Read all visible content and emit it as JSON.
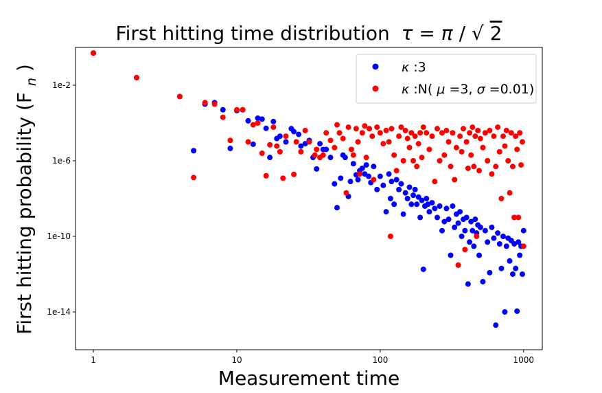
{
  "chart_data": {
    "type": "scatter",
    "title": "First hitting time distribution",
    "title_math": {
      "symbol": "τ",
      "equals": " = ",
      "numerator": "π",
      "slash": "/",
      "radical": "√",
      "radicand": "2"
    },
    "xlabel": "Measurement time",
    "ylabel": "First hitting probability (F",
    "ylabel_sub": "n",
    "ylabel_close": ")",
    "x_scale": "log",
    "y_scale": "log",
    "xlim": [
      0.75,
      1350
    ],
    "ylim": [
      1e-16,
      1.0
    ],
    "xticks": [
      {
        "value": 1,
        "label": "1"
      },
      {
        "value": 10,
        "label": "10"
      },
      {
        "value": 100,
        "label": "100"
      },
      {
        "value": 1000,
        "label": "1000"
      }
    ],
    "yticks": [
      {
        "value": 0.01,
        "label": "1e-2"
      },
      {
        "value": 1e-06,
        "label": "1e-6"
      },
      {
        "value": 1e-10,
        "label": "1e-10"
      },
      {
        "value": 1e-14,
        "label": "1e-14"
      }
    ],
    "grid": false,
    "legend_position": "top-right",
    "series": [
      {
        "name_symbol": "κ",
        "name_rest": ":3",
        "color": "#0000ff",
        "points": [
          [
            1,
            0.5
          ],
          [
            2,
            0.025
          ],
          [
            4,
            0.0025
          ],
          [
            5,
            3.4e-06
          ],
          [
            6,
            0.001
          ],
          [
            7,
            0.0012
          ],
          [
            8,
            0.0005
          ],
          [
            9,
            4.5e-06
          ],
          [
            10,
            0.00045
          ],
          [
            11,
            0.0005
          ],
          [
            12,
            0.00013
          ],
          [
            13,
            7.5e-06
          ],
          [
            14,
            0.00018
          ],
          [
            15,
            0.00016
          ],
          [
            16,
            5.2e-05
          ],
          [
            17,
            1.5e-06
          ],
          [
            18,
            0.00012
          ],
          [
            19,
            1.5e-05
          ],
          [
            20,
            2e-05
          ],
          [
            22,
            1e-05
          ],
          [
            24,
            5e-05
          ],
          [
            25,
            3.5e-05
          ],
          [
            27,
            2.5e-05
          ],
          [
            28,
            6e-06
          ],
          [
            30,
            8e-06
          ],
          [
            32,
            1.2e-05
          ],
          [
            34,
            1.5e-06
          ],
          [
            36,
            3.7e-07
          ],
          [
            38,
            8e-06
          ],
          [
            40,
            4e-06
          ],
          [
            42,
            4e-06
          ],
          [
            45,
            1.5e-06
          ],
          [
            48,
            6e-08
          ],
          [
            50,
            3.3e-09
          ],
          [
            53,
            1.2e-07
          ],
          [
            55,
            2e-06
          ],
          [
            57,
            1.5e-06
          ],
          [
            60,
            1.3e-08
          ],
          [
            62,
            8e-08
          ],
          [
            65,
            7e-07
          ],
          [
            68,
            1.8e-07
          ],
          [
            70,
            1e-07
          ],
          [
            72,
            3e-07
          ],
          [
            75,
            4e-07
          ],
          [
            78,
            2e-07
          ],
          [
            80,
            6e-07
          ],
          [
            83,
            1.5e-07
          ],
          [
            86,
            7e-08
          ],
          [
            90,
            5e-07
          ],
          [
            95,
            3e-08
          ],
          [
            100,
            1.5e-07
          ],
          [
            105,
            5e-08
          ],
          [
            110,
            2e-09
          ],
          [
            115,
            2e-07
          ],
          [
            118,
            1e-08
          ],
          [
            120,
            8e-08
          ],
          [
            125,
            5e-09
          ],
          [
            130,
            1e-07
          ],
          [
            135,
            3e-08
          ],
          [
            140,
            6e-08
          ],
          [
            145,
            1.5e-09
          ],
          [
            150,
            2e-08
          ],
          [
            155,
            1e-08
          ],
          [
            160,
            4e-08
          ],
          [
            165,
            5e-09
          ],
          [
            170,
            1.5e-08
          ],
          [
            175,
            3e-08
          ],
          [
            180,
            5e-09
          ],
          [
            185,
            1.2e-08
          ],
          [
            190,
            1e-09
          ],
          [
            195,
            8e-09
          ],
          [
            200,
            1.8e-12
          ],
          [
            205,
            4e-09
          ],
          [
            210,
            1e-08
          ],
          [
            215,
            5e-09
          ],
          [
            220,
            2e-09
          ],
          [
            230,
            6e-09
          ],
          [
            240,
            3e-09
          ],
          [
            250,
            1e-09
          ],
          [
            260,
            4e-09
          ],
          [
            270,
            2e-10
          ],
          [
            280,
            6e-10
          ],
          [
            290,
            3e-09
          ],
          [
            300,
            8e-10
          ],
          [
            310,
            1e-11
          ],
          [
            320,
            4e-09
          ],
          [
            330,
            3e-10
          ],
          [
            340,
            1.5e-09
          ],
          [
            350,
            5e-10
          ],
          [
            360,
            2e-09
          ],
          [
            370,
            1e-10
          ],
          [
            380,
            8e-10
          ],
          [
            390,
            2e-10
          ],
          [
            400,
            1e-09
          ],
          [
            410,
            3e-13
          ],
          [
            420,
            5e-11
          ],
          [
            430,
            6e-10
          ],
          [
            440,
            2e-10
          ],
          [
            450,
            3e-11
          ],
          [
            460,
            8e-10
          ],
          [
            470,
            1.5e-10
          ],
          [
            480,
            4e-10
          ],
          [
            490,
            1e-11
          ],
          [
            500,
            3e-10
          ],
          [
            520,
            4e-13
          ],
          [
            540,
            2e-10
          ],
          [
            560,
            5e-11
          ],
          [
            580,
            1.2e-12
          ],
          [
            600,
            3e-10
          ],
          [
            620,
            8e-11
          ],
          [
            640,
            2e-15
          ],
          [
            660,
            1.5e-10
          ],
          [
            680,
            4e-11
          ],
          [
            700,
            2e-12
          ],
          [
            720,
            1e-10
          ],
          [
            740,
            1e-14
          ],
          [
            760,
            3e-11
          ],
          [
            780,
            8e-11
          ],
          [
            800,
            5e-12
          ],
          [
            820,
            6e-11
          ],
          [
            840,
            1e-12
          ],
          [
            860,
            4e-11
          ],
          [
            880,
            2e-12
          ],
          [
            900,
            1.1e-14
          ],
          [
            920,
            5e-11
          ],
          [
            940,
            1e-11
          ],
          [
            960,
            3e-11
          ],
          [
            980,
            1e-12
          ],
          [
            1000,
            2e-10
          ]
        ]
      },
      {
        "name_symbol": "κ",
        "name_rest": ":N(",
        "name_mu": "μ",
        "name_mid": "=3, ",
        "name_sigma": "σ",
        "name_end": "=0.01)",
        "color": "#ff0000",
        "points": [
          [
            1,
            0.5
          ],
          [
            2,
            0.025
          ],
          [
            4,
            0.0025
          ],
          [
            5,
            1.3e-07
          ],
          [
            6,
            0.0012
          ],
          [
            7,
            0.001
          ],
          [
            8,
            0.0002
          ],
          [
            9,
            1.2e-05
          ],
          [
            10,
            0.0005
          ],
          [
            11,
            0.0005
          ],
          [
            12,
            1e-05
          ],
          [
            13,
            8e-05
          ],
          [
            14,
            0.0001
          ],
          [
            15,
            2.5e-06
          ],
          [
            16,
            1.6e-07
          ],
          [
            17,
            7e-06
          ],
          [
            18,
            6e-05
          ],
          [
            19,
            6e-06
          ],
          [
            20,
            3e-06
          ],
          [
            21,
            1.2e-07
          ],
          [
            22,
            2e-05
          ],
          [
            25,
            1.9e-07
          ],
          [
            26,
            1e-05
          ],
          [
            28,
            3e-06
          ],
          [
            30,
            4e-05
          ],
          [
            32,
            1e-05
          ],
          [
            35,
            2e-06
          ],
          [
            36,
            4e-06
          ],
          [
            38,
            1.5e-06
          ],
          [
            40,
            2e-06
          ],
          [
            42,
            3e-05
          ],
          [
            45,
            1.2e-05
          ],
          [
            48,
            5e-06
          ],
          [
            50,
            8e-05
          ],
          [
            52,
            3e-05
          ],
          [
            55,
            1.5e-05
          ],
          [
            58,
            2e-08
          ],
          [
            60,
            6e-05
          ],
          [
            63,
            4e-06
          ],
          [
            65,
            2e-06
          ],
          [
            68,
            5e-05
          ],
          [
            70,
            1e-05
          ],
          [
            72,
            2e-07
          ],
          [
            75,
            3e-05
          ],
          [
            78,
            7e-05
          ],
          [
            80,
            1.5e-06
          ],
          [
            84,
            5e-05
          ],
          [
            88,
            2e-05
          ],
          [
            90,
            1e-07
          ],
          [
            95,
            6e-05
          ],
          [
            100,
            3e-05
          ],
          [
            105,
            8e-06
          ],
          [
            110,
            4e-05
          ],
          [
            115,
            1e-05
          ],
          [
            118,
            1e-10
          ],
          [
            120,
            5e-05
          ],
          [
            125,
            2e-06
          ],
          [
            130,
            3e-07
          ],
          [
            135,
            2e-05
          ],
          [
            140,
            6e-05
          ],
          [
            145,
            1e-06
          ],
          [
            150,
            4e-05
          ],
          [
            155,
            1.5e-05
          ],
          [
            160,
            5e-06
          ],
          [
            165,
            3e-05
          ],
          [
            170,
            1e-06
          ],
          [
            175,
            2e-05
          ],
          [
            180,
            5e-07
          ],
          [
            185,
            8e-06
          ],
          [
            190,
            3e-05
          ],
          [
            195,
            1.5e-06
          ],
          [
            200,
            6e-05
          ],
          [
            210,
            3e-05
          ],
          [
            220,
            4e-06
          ],
          [
            230,
            2e-05
          ],
          [
            240,
            8e-08
          ],
          [
            250,
            5e-05
          ],
          [
            260,
            1e-06
          ],
          [
            270,
            3e-05
          ],
          [
            280,
            2e-06
          ],
          [
            290,
            4e-05
          ],
          [
            300,
            1e-05
          ],
          [
            310,
            5e-07
          ],
          [
            320,
            3e-05
          ],
          [
            330,
            1e-07
          ],
          [
            340,
            5e-06
          ],
          [
            350,
            3e-12
          ],
          [
            360,
            2e-05
          ],
          [
            370,
            3e-06
          ],
          [
            380,
            5e-05
          ],
          [
            390,
            2e-11
          ],
          [
            400,
            1e-05
          ],
          [
            410,
            4e-07
          ],
          [
            420,
            3e-05
          ],
          [
            430,
            2e-06
          ],
          [
            440,
            6e-05
          ],
          [
            450,
            5e-07
          ],
          [
            460,
            2e-05
          ],
          [
            470,
            1e-10
          ],
          [
            480,
            4e-05
          ],
          [
            490,
            3e-07
          ],
          [
            500,
            1.5e-05
          ],
          [
            520,
            5e-06
          ],
          [
            540,
            3e-05
          ],
          [
            560,
            1e-06
          ],
          [
            580,
            4e-05
          ],
          [
            600,
            2e-07
          ],
          [
            620,
            2e-05
          ],
          [
            640,
            5e-07
          ],
          [
            660,
            6e-05
          ],
          [
            680,
            3e-06
          ],
          [
            700,
            1e-08
          ],
          [
            720,
            2e-05
          ],
          [
            740,
            6e-06
          ],
          [
            760,
            4e-05
          ],
          [
            780,
            1e-06
          ],
          [
            800,
            2e-08
          ],
          [
            820,
            3e-05
          ],
          [
            840,
            5e-07
          ],
          [
            860,
            1e-09
          ],
          [
            880,
            2e-05
          ],
          [
            900,
            4e-06
          ],
          [
            920,
            1e-09
          ],
          [
            940,
            3e-05
          ],
          [
            960,
            6e-07
          ],
          [
            980,
            1e-05
          ],
          [
            1000,
            3e-11
          ]
        ]
      }
    ]
  }
}
